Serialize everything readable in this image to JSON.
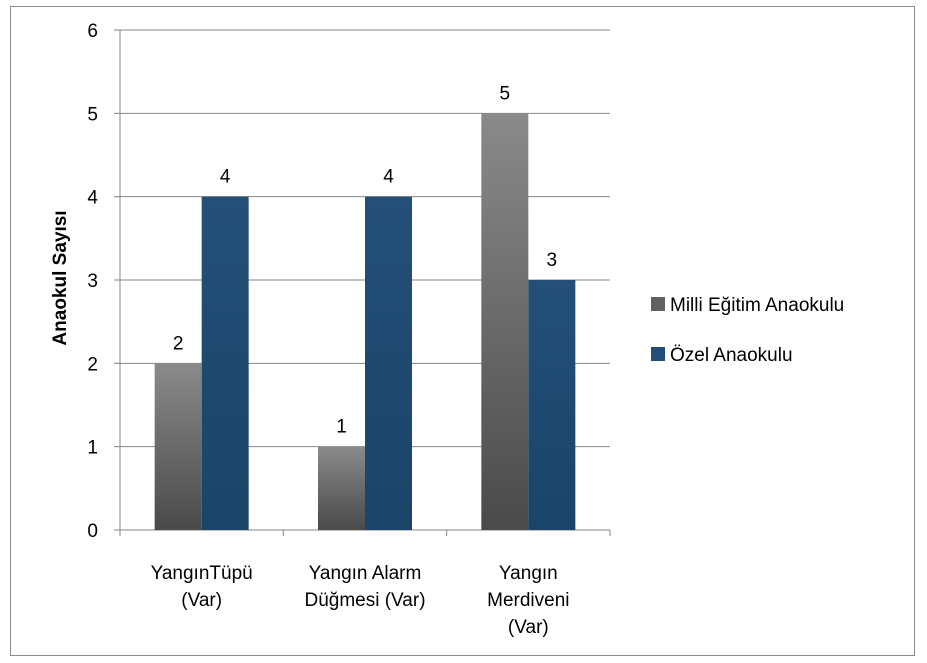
{
  "chart_data": {
    "type": "bar",
    "categories": [
      [
        "YangınTüpü",
        "(Var)"
      ],
      [
        "Yangın Alarm",
        "Düğmesi (Var)"
      ],
      [
        "Yangın",
        "Merdiveni",
        "(Var)"
      ]
    ],
    "series": [
      {
        "name": "Milli Eğitim Anaokulu",
        "values": [
          2,
          1,
          5
        ],
        "color": "#606060"
      },
      {
        "name": "Özel Anaokulu",
        "values": [
          4,
          4,
          3
        ],
        "color": "#1f4e79"
      }
    ],
    "ylabel": "Anaokul Sayısı",
    "xlabel": "",
    "ylim": [
      0,
      6
    ],
    "yticks": [
      0,
      1,
      2,
      3,
      4,
      5,
      6
    ],
    "grid": true,
    "legend": "right",
    "data_labels": true
  }
}
